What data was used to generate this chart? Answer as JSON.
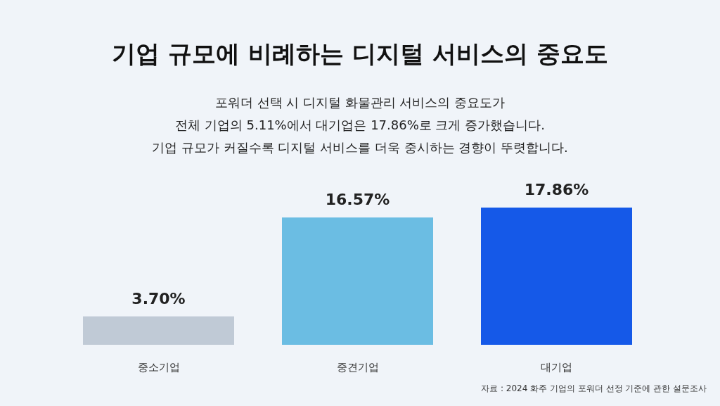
{
  "chart_data": {
    "type": "bar",
    "title": "기업 규모에 비례하는 디지털 서비스의 중요도",
    "subtitle": "포워더 선택 시 디지털 화물관리 서비스의 중요도가\n전체 기업의 5.11%에서 대기업은 17.86%로 크게 증가했습니다.\n기업 규모가 커질수록 디지털 서비스를 더욱 중시하는 경향이 뚜렷합니다.",
    "categories": [
      "중소기업",
      "중견기업",
      "대기업"
    ],
    "values": [
      3.7,
      16.57,
      17.86
    ],
    "colors": [
      "#c0cad6",
      "#6bbde3",
      "#1559e8"
    ],
    "value_labels": [
      "3.70%",
      "16.57%",
      "17.86%"
    ],
    "relative": false,
    "annotations": [
      "자료 : 2024 화주 기업의 포워더 선정 기준에 관한 설문조사"
    ]
  }
}
